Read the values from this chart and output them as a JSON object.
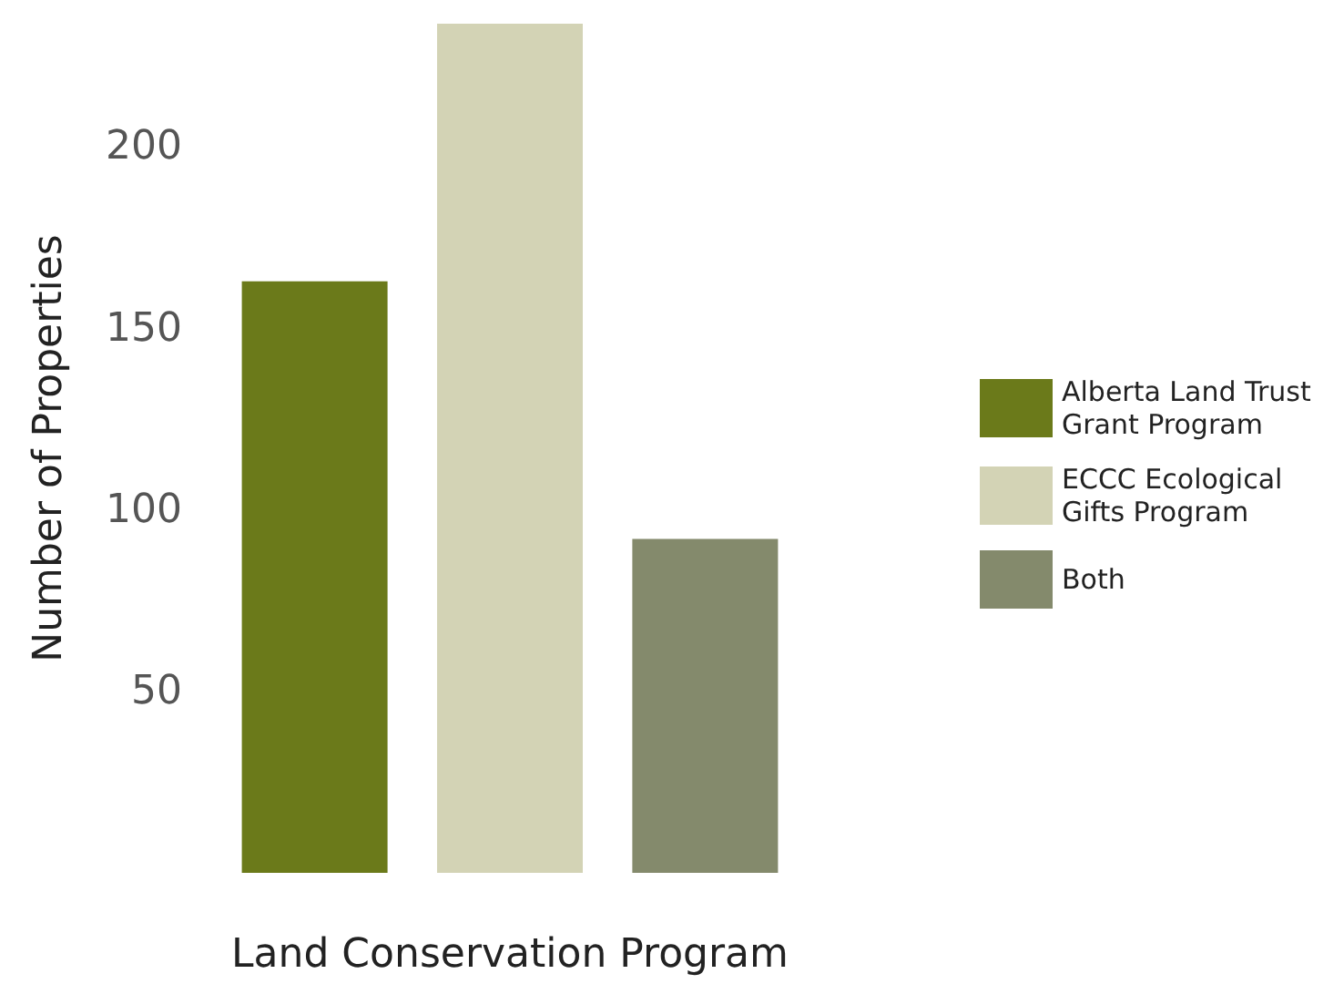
{
  "chart_data": {
    "type": "bar",
    "xlabel": "Land Conservation Program",
    "ylabel": "Number of Properties",
    "categories": [
      null
    ],
    "series": [
      {
        "name": "Alberta Land Trust Grant Program",
        "color": "#6b7a1a",
        "values": [
          163
        ]
      },
      {
        "name": "ECCC Ecological Gifts Program",
        "color": "#d3d3b5",
        "values": [
          234
        ]
      },
      {
        "name": "Both",
        "color": "#848a6c",
        "values": [
          92
        ]
      }
    ],
    "ylim": [
      0,
      234
    ],
    "yticks": [
      50,
      100,
      150,
      200
    ],
    "grid": false,
    "legend": "right",
    "tick_labels": "y"
  }
}
